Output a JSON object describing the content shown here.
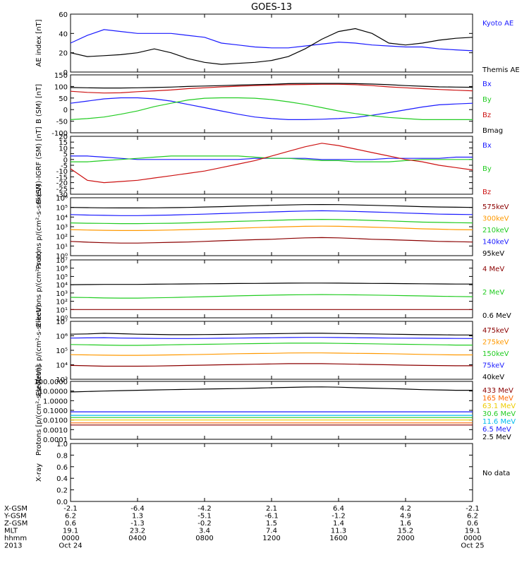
{
  "title": "GOES-13",
  "chart_data": [
    {
      "type": "line",
      "ylabel": "AE index [nT]",
      "yticks": [
        "60",
        "40",
        "20",
        "0"
      ],
      "ylim": [
        0,
        60
      ],
      "scale": "linear",
      "series": [
        {
          "name": "Kyoto AE",
          "color": "#1a1aff",
          "values": [
            30,
            38,
            44,
            42,
            40,
            40,
            40,
            38,
            36,
            30,
            28,
            26,
            25,
            25,
            27,
            29,
            31,
            30,
            28,
            27,
            26,
            26,
            24,
            23,
            22
          ]
        },
        {
          "name": "Themis AE",
          "color": "#000000",
          "values": [
            20,
            16,
            17,
            18,
            20,
            24,
            20,
            14,
            10,
            8,
            9,
            10,
            12,
            16,
            24,
            34,
            42,
            45,
            40,
            30,
            28,
            30,
            33,
            35,
            36
          ]
        }
      ]
    },
    {
      "type": "line",
      "ylabel": "B (SM) [nT]",
      "yticks": [
        "150",
        "100",
        "50",
        "0",
        "-50",
        "-100"
      ],
      "ylim": [
        -110,
        155
      ],
      "scale": "linear",
      "series": [
        {
          "name": "Bx",
          "color": "#1a1aff",
          "values": [
            25,
            35,
            45,
            50,
            50,
            45,
            35,
            20,
            5,
            -10,
            -25,
            -38,
            -45,
            -50,
            -50,
            -48,
            -45,
            -40,
            -30,
            -18,
            -5,
            8,
            18,
            22,
            25
          ]
        },
        {
          "name": "By",
          "color": "#22cc22",
          "values": [
            -50,
            -45,
            -38,
            -25,
            -10,
            10,
            25,
            40,
            48,
            50,
            50,
            48,
            42,
            32,
            20,
            5,
            -10,
            -22,
            -32,
            -40,
            -45,
            -50,
            -50,
            -50,
            -50
          ]
        },
        {
          "name": "Bz",
          "color": "#cc1111",
          "values": [
            80,
            75,
            72,
            73,
            78,
            82,
            86,
            92,
            96,
            100,
            103,
            106,
            108,
            110,
            111,
            112,
            112,
            110,
            106,
            100,
            96,
            92,
            88,
            85,
            82
          ]
        },
        {
          "name": "Bmag",
          "color": "#000000",
          "values": [
            97,
            96,
            95,
            95,
            96,
            97,
            99,
            102,
            104,
            106,
            108,
            110,
            112,
            115,
            116,
            116,
            116,
            115,
            113,
            110,
            106,
            103,
            100,
            99,
            98
          ]
        }
      ]
    },
    {
      "type": "line",
      "ylabel": "B (SM)-IGRF (SM) [nT]",
      "yticks": [
        "20",
        "15",
        "10",
        "5",
        "0",
        "-5",
        "-10",
        "-15",
        "-20",
        "-25",
        "-30"
      ],
      "ylim": [
        -30,
        20
      ],
      "scale": "linear",
      "series": [
        {
          "name": "Bx",
          "color": "#1a1aff",
          "values": [
            3,
            3,
            2,
            1,
            0,
            0,
            0,
            0,
            0,
            0,
            0,
            1,
            1,
            1,
            1,
            0,
            0,
            0,
            0,
            1,
            1,
            1,
            1,
            2,
            2
          ]
        },
        {
          "name": "By",
          "color": "#22cc22",
          "values": [
            -2,
            -2,
            -1,
            0,
            1,
            2,
            3,
            3,
            3,
            3,
            3,
            2,
            1,
            1,
            0,
            -1,
            -1,
            -2,
            -2,
            -2,
            -1,
            0,
            0,
            0,
            0
          ]
        },
        {
          "name": "Bz",
          "color": "#cc1111",
          "values": [
            -8,
            -18,
            -20,
            -19,
            -18,
            -16,
            -14,
            -12,
            -10,
            -7,
            -4,
            -1,
            3,
            7,
            11,
            14,
            12,
            9,
            6,
            3,
            0,
            -2,
            -5,
            -7,
            -9
          ]
        }
      ]
    },
    {
      "type": "line",
      "ylabel": "Protons p/(cm²-s-sr-keV)",
      "yticks": [
        "10⁶",
        "10⁵",
        "10⁴",
        "10³",
        "10²",
        "10¹",
        "10⁰"
      ],
      "ylim": [
        1,
        1000000
      ],
      "scale": "log",
      "series": [
        {
          "name": "575keV",
          "color": "#8b0000",
          "values": [
            30,
            25,
            22,
            20,
            20,
            22,
            24,
            26,
            30,
            35,
            40,
            45,
            50,
            60,
            70,
            75,
            70,
            60,
            50,
            45,
            40,
            35,
            30,
            28,
            26
          ]
        },
        {
          "name": "300keV",
          "color": "#ff9900",
          "values": [
            500,
            450,
            420,
            400,
            400,
            420,
            450,
            500,
            550,
            600,
            700,
            800,
            900,
            1000,
            1100,
            1150,
            1100,
            1000,
            900,
            800,
            700,
            600,
            550,
            500,
            480
          ]
        },
        {
          "name": "210keV",
          "color": "#22cc22",
          "values": [
            2500,
            2300,
            2200,
            2100,
            2100,
            2200,
            2300,
            2500,
            2800,
            3200,
            3600,
            4000,
            4500,
            5000,
            5500,
            5800,
            5500,
            5000,
            4500,
            4000,
            3500,
            3000,
            2800,
            2600,
            2500
          ]
        },
        {
          "name": "140keV",
          "color": "#1a1aff",
          "values": [
            18000,
            16000,
            15000,
            14000,
            14000,
            15000,
            16000,
            18000,
            20000,
            23000,
            26000,
            30000,
            34000,
            38000,
            42000,
            45000,
            42000,
            38000,
            34000,
            30000,
            26000,
            23000,
            20000,
            19000,
            18000
          ]
        },
        {
          "name": "95keV",
          "color": "#000000",
          "values": [
            100000,
            95000,
            90000,
            88000,
            88000,
            90000,
            95000,
            100000,
            110000,
            120000,
            135000,
            150000,
            165000,
            180000,
            195000,
            200000,
            195000,
            180000,
            165000,
            150000,
            135000,
            120000,
            110000,
            105000,
            100000
          ]
        }
      ]
    },
    {
      "type": "line",
      "ylabel": "Electrons p/(cm²-s-sr)",
      "yticks": [
        "10⁷",
        "10⁶",
        "10⁵",
        "10⁴",
        "10³",
        "10²",
        "10¹",
        "10⁰"
      ],
      "ylim": [
        1,
        10000000
      ],
      "scale": "log",
      "series": [
        {
          "name": "4 MeV",
          "color": "#8b0000",
          "values": [
            10,
            10,
            10,
            10,
            10,
            10,
            10,
            10,
            10,
            10,
            10,
            10,
            10,
            10,
            10,
            10,
            10,
            10,
            10,
            10,
            10,
            10,
            10,
            10,
            10
          ]
        },
        {
          "name": "2 MeV",
          "color": "#22cc22",
          "values": [
            300,
            280,
            250,
            240,
            240,
            260,
            280,
            320,
            360,
            400,
            450,
            500,
            550,
            600,
            620,
            640,
            620,
            600,
            560,
            520,
            480,
            440,
            400,
            380,
            360
          ]
        },
        {
          "name": "0.6 MeV",
          "color": "#000000",
          "values": [
            10000,
            10500,
            11000,
            11000,
            11000,
            11500,
            12000,
            12500,
            13000,
            13500,
            14000,
            14500,
            15000,
            15500,
            16000,
            16000,
            15500,
            15000,
            14500,
            14000,
            13500,
            13000,
            12500,
            12000,
            12000
          ]
        }
      ]
    },
    {
      "type": "line",
      "ylabel": "Electrons p/(cm²-s-sr-keV)",
      "yticks": [
        "10⁷",
        "10⁶",
        "10⁵",
        "10⁴",
        "10³"
      ],
      "ylim": [
        1000,
        10000000
      ],
      "scale": "log",
      "series": [
        {
          "name": "475keV",
          "color": "#8b0000",
          "values": [
            9000,
            8500,
            8000,
            8000,
            8000,
            8200,
            8500,
            9000,
            9500,
            10000,
            10500,
            11000,
            11500,
            12000,
            12000,
            12000,
            11500,
            11000,
            10500,
            10000,
            9500,
            9000,
            8800,
            8500,
            8500
          ]
        },
        {
          "name": "275keV",
          "color": "#ff9900",
          "values": [
            50000,
            48000,
            46000,
            45000,
            45000,
            46000,
            48000,
            50000,
            52000,
            55000,
            58000,
            60000,
            62000,
            65000,
            66000,
            66000,
            64000,
            62000,
            60000,
            58000,
            55000,
            52000,
            50000,
            48000,
            48000
          ]
        },
        {
          "name": "150keV",
          "color": "#22cc22",
          "values": [
            250000,
            240000,
            230000,
            220000,
            220000,
            230000,
            240000,
            250000,
            260000,
            270000,
            280000,
            290000,
            300000,
            310000,
            310000,
            310000,
            300000,
            290000,
            280000,
            270000,
            260000,
            250000,
            240000,
            230000,
            230000
          ]
        },
        {
          "name": "75keV",
          "color": "#1a1aff",
          "values": [
            700000,
            720000,
            750000,
            700000,
            680000,
            660000,
            650000,
            650000,
            660000,
            680000,
            700000,
            720000,
            740000,
            760000,
            780000,
            780000,
            760000,
            740000,
            720000,
            700000,
            690000,
            680000,
            670000,
            660000,
            650000
          ]
        },
        {
          "name": "40keV",
          "color": "#000000",
          "values": [
            1300000,
            1350000,
            1500000,
            1400000,
            1300000,
            1250000,
            1200000,
            1200000,
            1220000,
            1250000,
            1300000,
            1350000,
            1400000,
            1450000,
            1500000,
            1500000,
            1450000,
            1400000,
            1350000,
            1300000,
            1250000,
            1200000,
            1180000,
            1150000,
            1150000
          ]
        }
      ]
    },
    {
      "type": "line",
      "ylabel": "Protons [p/(cm²-s-sr-keV)]",
      "yticks": [
        "100.0000",
        "10.0000",
        "1.0000",
        "0.1000",
        "0.0100",
        "0.0010",
        "0.0001"
      ],
      "ylim": [
        0.0001,
        100
      ],
      "scale": "log",
      "series": [
        {
          "name": "433 MeV",
          "color": "#8b0000",
          "values": [
            0.003,
            0.003,
            0.003,
            0.003,
            0.003,
            0.003,
            0.003,
            0.003,
            0.003,
            0.003,
            0.003,
            0.003,
            0.003,
            0.003,
            0.003,
            0.003,
            0.003,
            0.003,
            0.003,
            0.003,
            0.003,
            0.003,
            0.003,
            0.003,
            0.003
          ]
        },
        {
          "name": "165 MeV",
          "color": "#ff6600",
          "values": [
            0.005,
            0.005,
            0.005,
            0.005,
            0.005,
            0.005,
            0.005,
            0.005,
            0.005,
            0.005,
            0.005,
            0.005,
            0.005,
            0.005,
            0.005,
            0.005,
            0.005,
            0.005,
            0.005,
            0.005,
            0.005,
            0.005,
            0.005,
            0.005,
            0.005
          ]
        },
        {
          "name": "63.1 MeV",
          "color": "#eecc00",
          "values": [
            0.01,
            0.01,
            0.01,
            0.01,
            0.01,
            0.01,
            0.01,
            0.01,
            0.01,
            0.01,
            0.01,
            0.01,
            0.01,
            0.01,
            0.01,
            0.01,
            0.01,
            0.01,
            0.01,
            0.01,
            0.01,
            0.01,
            0.01,
            0.01,
            0.01
          ]
        },
        {
          "name": "30.6 MeV",
          "color": "#22cc22",
          "values": [
            0.018,
            0.018,
            0.018,
            0.018,
            0.018,
            0.018,
            0.018,
            0.018,
            0.018,
            0.018,
            0.018,
            0.018,
            0.018,
            0.018,
            0.018,
            0.018,
            0.018,
            0.018,
            0.018,
            0.018,
            0.018,
            0.018,
            0.018,
            0.018,
            0.018
          ]
        },
        {
          "name": "11.6 MeV",
          "color": "#00bbee",
          "values": [
            0.03,
            0.03,
            0.03,
            0.03,
            0.03,
            0.03,
            0.03,
            0.03,
            0.03,
            0.03,
            0.03,
            0.03,
            0.03,
            0.03,
            0.03,
            0.03,
            0.03,
            0.03,
            0.03,
            0.03,
            0.03,
            0.03,
            0.03,
            0.03,
            0.03
          ]
        },
        {
          "name": "6.5 MeV",
          "color": "#1a1aff",
          "values": [
            0.07,
            0.07,
            0.07,
            0.07,
            0.07,
            0.07,
            0.07,
            0.07,
            0.07,
            0.07,
            0.07,
            0.07,
            0.07,
            0.07,
            0.07,
            0.07,
            0.07,
            0.07,
            0.07,
            0.07,
            0.07,
            0.07,
            0.07,
            0.07,
            0.07
          ]
        },
        {
          "name": "2.5 MeV",
          "color": "#000000",
          "values": [
            8,
            9,
            10,
            11,
            12,
            13,
            14,
            15,
            16,
            17,
            18,
            20,
            22,
            24,
            26,
            27,
            25,
            22,
            20,
            18,
            16,
            14,
            13,
            12,
            12
          ]
        }
      ]
    },
    {
      "type": "line",
      "ylabel": "X-ray",
      "yticks": [
        "1.0",
        "0.8",
        "0.6",
        "0.4",
        "0.2",
        "0.0"
      ],
      "ylim": [
        0,
        1
      ],
      "scale": "linear",
      "series": [],
      "note": "No data"
    }
  ],
  "x_axis": {
    "positions": [
      0,
      4,
      8,
      12,
      16,
      20,
      24
    ],
    "rows": [
      {
        "label": "X-GSM",
        "values": [
          "-2.1",
          "-6.4",
          "-4.2",
          "2.1",
          "6.4",
          "4.2",
          "-2.1"
        ]
      },
      {
        "label": "Y-GSM",
        "values": [
          "6.2",
          "1.3",
          "-5.1",
          "-6.1",
          "-1.2",
          "4.9",
          "6.2"
        ]
      },
      {
        "label": "Z-GSM",
        "values": [
          "0.6",
          "-1.3",
          "-0.2",
          "1.5",
          "1.4",
          "1.6",
          "0.6"
        ]
      },
      {
        "label": "MLT",
        "values": [
          "19.1",
          "23.2",
          "3.4",
          "7.4",
          "11.3",
          "15.2",
          "19.1"
        ]
      },
      {
        "label": "hhmm",
        "values": [
          "0000",
          "0400",
          "0800",
          "1200",
          "1600",
          "2000",
          "0000"
        ]
      },
      {
        "label": "2013",
        "values": [
          "Oct 24",
          "",
          "",
          "",
          "",
          "",
          "Oct 25"
        ]
      }
    ]
  }
}
